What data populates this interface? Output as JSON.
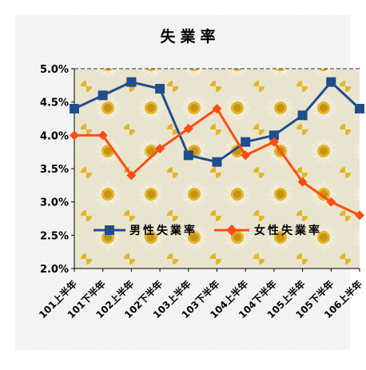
{
  "chart_data": {
    "type": "line",
    "title": "失業率",
    "categories": [
      "101上半年",
      "101下半年",
      "102上半年",
      "102下半年",
      "103上半年",
      "103下半年",
      "104上半年",
      "104下半年",
      "105上半年",
      "105下半年",
      "106上半年"
    ],
    "y_tick_labels": [
      "5.0%",
      "4.5%",
      "4.0%",
      "3.5%",
      "3.0%",
      "2.5%",
      "2.0%"
    ],
    "ylim": [
      2.0,
      5.0
    ],
    "grid": false,
    "legend_placement": "inside-lower",
    "series": [
      {
        "name": "男性失業率",
        "color": "#1f4e8c",
        "marker": "square",
        "values": [
          4.4,
          4.6,
          4.8,
          4.7,
          3.7,
          3.6,
          3.9,
          4.0,
          4.3,
          4.8,
          4.4
        ]
      },
      {
        "name": "女性失業率",
        "color": "#ff4c14",
        "marker": "diamond",
        "values": [
          4.0,
          4.0,
          3.4,
          3.8,
          4.1,
          4.4,
          3.7,
          3.9,
          3.3,
          3.0,
          2.8
        ]
      }
    ]
  }
}
